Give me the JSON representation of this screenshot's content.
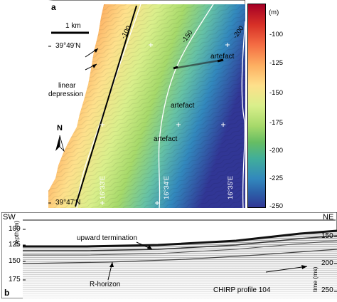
{
  "panel_a": {
    "letter": "a",
    "scale_bar_label": "1 km",
    "lat_top": "39°49'N",
    "lat_bottom": "39°47'N",
    "lon_labels": [
      "16°33'E",
      "16°34'E",
      "16°35'E"
    ],
    "contours": [
      "-100",
      "-150",
      "-200"
    ],
    "annotations": {
      "linear_depression": [
        "linear",
        "depression"
      ],
      "artefacts": [
        "artefact",
        "artefact",
        "artefact"
      ]
    },
    "north": "N"
  },
  "colorbar": {
    "unit": "(m)",
    "ticks": [
      "-100",
      "-125",
      "-150",
      "-175",
      "-200",
      "-225",
      "-250"
    ],
    "colors": [
      "#a50026",
      "#d73027",
      "#f46d43",
      "#fdae61",
      "#fee08b",
      "#d9ef8b",
      "#a6d96a",
      "#66bd63",
      "#41ae9a",
      "#3288bd",
      "#2c5fa8",
      "#313695"
    ]
  },
  "panel_b": {
    "letter": "b",
    "sw": "SW",
    "ne": "NE",
    "depth_label": "depth (m)",
    "depth_ticks": [
      "100",
      "125",
      "150",
      "175"
    ],
    "time_label": "time (ms)",
    "time_ticks": [
      "150",
      "200",
      "250"
    ],
    "annotations": {
      "upward_termination": "upward termination",
      "r_horizon": "R-horizon",
      "profile": "CHIRP profile 104"
    }
  }
}
